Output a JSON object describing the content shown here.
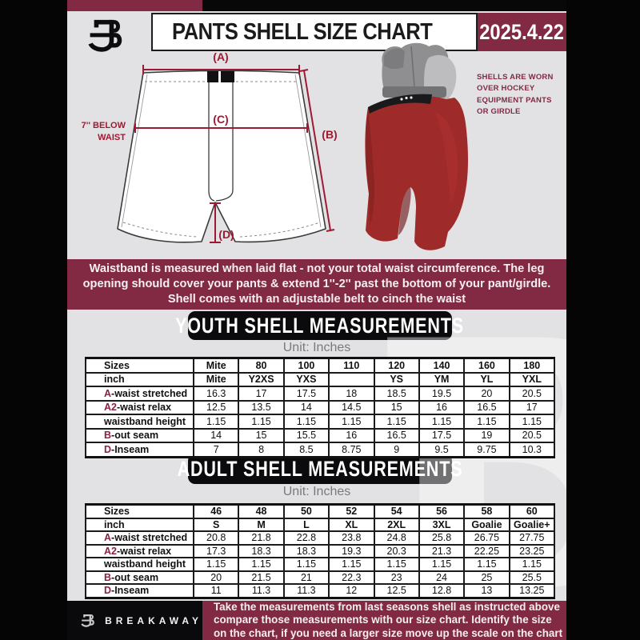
{
  "header": {
    "title": "PANTS SHELL SIZE CHART",
    "date": "2025.4.22"
  },
  "diagram": {
    "label_a": "(A)",
    "label_b": "(B)",
    "label_c": "(C)",
    "label_d": "(D)",
    "note_line1": "7'' BELOW",
    "note_line2": "WAIST"
  },
  "photo_caption": {
    "line1": "SHELLS ARE WORN",
    "line2": "OVER HOCKEY",
    "line3": "EQUIPMENT PANTS",
    "line4": "OR GIRDLE"
  },
  "banner": {
    "line1": "Waistband is measured when laid flat - not your total waist circumference. The leg",
    "line2": "opening should cover your pants & extend 1''-2'' past the bottom of your pant/girdle.",
    "line3": "Shell comes with an adjustable belt to cinch the waist"
  },
  "youth": {
    "heading": "YOUTH SHELL MEASUREMENTS",
    "unit": "Unit: Inches",
    "rows": [
      {
        "accent": "",
        "label": "Sizes",
        "header": true,
        "values": [
          "Mite",
          "80",
          "100",
          "110",
          "120",
          "140",
          "160",
          "180"
        ]
      },
      {
        "accent": "",
        "label": "inch",
        "header": true,
        "values": [
          "Mite",
          "Y2XS",
          "YXS",
          "",
          "YS",
          "YM",
          "YL",
          "YXL"
        ]
      },
      {
        "accent": "A",
        "label": "-waist stretched",
        "header": false,
        "values": [
          "16.3",
          "17",
          "17.5",
          "18",
          "18.5",
          "19.5",
          "20",
          "20.5"
        ]
      },
      {
        "accent": "A2",
        "label": "-waist relax",
        "header": false,
        "values": [
          "12.5",
          "13.5",
          "14",
          "14.5",
          "15",
          "16",
          "16.5",
          "17"
        ]
      },
      {
        "accent": "",
        "label": "waistband height",
        "header": false,
        "values": [
          "1.15",
          "1.15",
          "1.15",
          "1.15",
          "1.15",
          "1.15",
          "1.15",
          "1.15"
        ]
      },
      {
        "accent": "B",
        "label": "-out seam",
        "header": false,
        "values": [
          "14",
          "15",
          "15.5",
          "16",
          "16.5",
          "17.5",
          "19",
          "20.5"
        ]
      },
      {
        "accent": "D",
        "label": "-Inseam",
        "header": false,
        "values": [
          "7",
          "8",
          "8.5",
          "8.75",
          "9",
          "9.5",
          "9.75",
          "10.3"
        ]
      }
    ]
  },
  "adult": {
    "heading": "ADULT SHELL MEASUREMENTS",
    "unit": "Unit: Inches",
    "rows": [
      {
        "accent": "",
        "label": "Sizes",
        "header": true,
        "values": [
          "46",
          "48",
          "50",
          "52",
          "54",
          "56",
          "58",
          "60"
        ]
      },
      {
        "accent": "",
        "label": "inch",
        "header": true,
        "values": [
          "S",
          "M",
          "L",
          "XL",
          "2XL",
          "3XL",
          "Goalie",
          "Goalie+"
        ]
      },
      {
        "accent": "A",
        "label": "-waist stretched",
        "header": false,
        "values": [
          "20.8",
          "21.8",
          "22.8",
          "23.8",
          "24.8",
          "25.8",
          "26.75",
          "27.75"
        ]
      },
      {
        "accent": "A2",
        "label": "-waist relax",
        "header": false,
        "values": [
          "17.3",
          "18.3",
          "18.3",
          "19.3",
          "20.3",
          "21.3",
          "22.25",
          "23.25"
        ]
      },
      {
        "accent": "",
        "label": "waistband height",
        "header": false,
        "values": [
          "1.15",
          "1.15",
          "1.15",
          "1.15",
          "1.15",
          "1.15",
          "1.15",
          "1.15"
        ]
      },
      {
        "accent": "B",
        "label": "-out seam",
        "header": false,
        "values": [
          "20",
          "21.5",
          "21",
          "22.3",
          "23",
          "24",
          "25",
          "25.5"
        ]
      },
      {
        "accent": "D",
        "label": "-Inseam",
        "header": false,
        "values": [
          "11",
          "11.3",
          "11.3",
          "12",
          "12.5",
          "12.8",
          "13",
          "13.25"
        ]
      }
    ]
  },
  "footer": {
    "brand": "BREAKAWAY",
    "line1": "Take the measurements from last seasons shell as instructed above",
    "line2": "compare those measurements  with our size chart. Identify the size",
    "line3": "on the chart, if you need a larger size move up the scale on the chart"
  },
  "watermark": {
    "glyph": "B"
  },
  "colors": {
    "maroon": "#822A43",
    "diagram_red": "#9C1B33",
    "background": "#E2E2E4",
    "accent_letter": "#8D2040"
  }
}
